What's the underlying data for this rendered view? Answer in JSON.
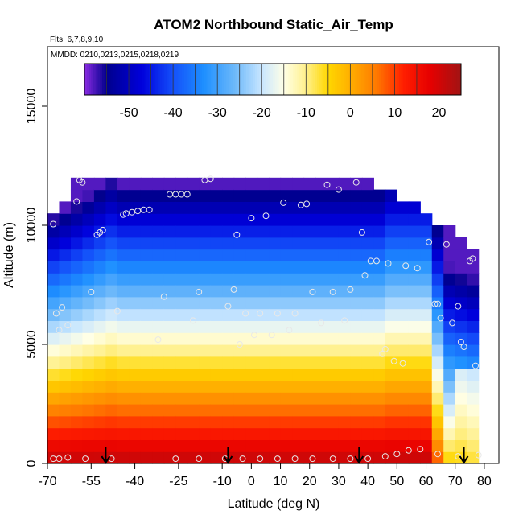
{
  "chart_data": {
    "type": "heatmap",
    "title": "ATOM2 Northbound Static_Air_Temp",
    "flights_note": "Flts: 6,7,8,9,10",
    "dates_note": "MMDD: 0210,0213,0215,0218,0219",
    "xlabel": "Latitude (deg N)",
    "ylabel": "Altitude (m)",
    "xlim": [
      -70,
      85
    ],
    "ylim": [
      0,
      17500
    ],
    "x_ticks": [
      -70,
      -55,
      -40,
      -25,
      -10,
      0,
      10,
      20,
      30,
      40,
      50,
      60,
      70,
      80
    ],
    "x_tick_labels": [
      "-70",
      "-55",
      "-40",
      "-25",
      "-10",
      "0",
      "10",
      "20",
      "30",
      "40",
      "50",
      "60",
      "70",
      "80"
    ],
    "y_ticks": [
      0,
      5000,
      10000,
      15000
    ],
    "y_tick_labels": [
      "0",
      "5000",
      "10000",
      "15000"
    ],
    "colorbar": {
      "min": -60,
      "max": 25,
      "ticks": [
        -50,
        -40,
        -30,
        -20,
        -10,
        0,
        10,
        20
      ],
      "tick_labels": [
        "-50",
        "-40",
        "-30",
        "-20",
        "-10",
        "0",
        "10",
        "20"
      ]
    },
    "grid": {
      "lat_start": -68,
      "lat_step": 4,
      "n_lat": 37,
      "alt_start": 0,
      "alt_step": 500,
      "n_alt": 25,
      "top_alt_by_lat": [
        10500,
        11000,
        12000,
        12000,
        12000,
        12000,
        12000,
        12000,
        12000,
        12000,
        12000,
        12000,
        12000,
        12000,
        12000,
        12000,
        12000,
        12000,
        12000,
        12000,
        12000,
        12000,
        12000,
        12000,
        12000,
        12000,
        12000,
        12000,
        11500,
        11500,
        11000,
        11000,
        10500,
        10000,
        10000,
        9500,
        9000
      ],
      "temperature_model": "estimated surface ~22C at mid-latitudes, ~-5C at 80N, cold upper levels near -55C"
    },
    "sample_points": [
      [
        -68,
        10050
      ],
      [
        -67,
        6300
      ],
      [
        -66,
        5600
      ],
      [
        -65,
        6550
      ],
      [
        -63,
        5800
      ],
      [
        -60,
        11000
      ],
      [
        -59,
        11900
      ],
      [
        -58,
        11800
      ],
      [
        -55,
        7200
      ],
      [
        -53,
        9600
      ],
      [
        -52,
        9700
      ],
      [
        -51,
        9800
      ],
      [
        -46,
        6400
      ],
      [
        -44,
        10450
      ],
      [
        -43,
        10500
      ],
      [
        -41,
        10550
      ],
      [
        -39,
        10600
      ],
      [
        -37,
        10650
      ],
      [
        -35,
        10650
      ],
      [
        -32,
        5200
      ],
      [
        -30,
        7000
      ],
      [
        -28,
        11300
      ],
      [
        -26,
        11300
      ],
      [
        -24,
        11300
      ],
      [
        -22,
        11300
      ],
      [
        -20,
        6000
      ],
      [
        -18,
        7200
      ],
      [
        -16,
        11900
      ],
      [
        -14,
        11950
      ],
      [
        -8,
        6600
      ],
      [
        -6,
        7300
      ],
      [
        -5,
        9600
      ],
      [
        -4,
        5000
      ],
      [
        -2,
        6300
      ],
      [
        0,
        10300
      ],
      [
        1,
        5400
      ],
      [
        3,
        6300
      ],
      [
        5,
        10400
      ],
      [
        7,
        5400
      ],
      [
        9,
        6300
      ],
      [
        11,
        10950
      ],
      [
        13,
        5600
      ],
      [
        15,
        6300
      ],
      [
        17,
        10850
      ],
      [
        19,
        10900
      ],
      [
        21,
        7200
      ],
      [
        24,
        5900
      ],
      [
        26,
        11700
      ],
      [
        28,
        7200
      ],
      [
        30,
        11500
      ],
      [
        32,
        6000
      ],
      [
        34,
        7300
      ],
      [
        36,
        11800
      ],
      [
        38,
        9700
      ],
      [
        39,
        7900
      ],
      [
        41,
        8500
      ],
      [
        43,
        8500
      ],
      [
        45,
        4600
      ],
      [
        46,
        4800
      ],
      [
        47,
        8400
      ],
      [
        49,
        4300
      ],
      [
        52,
        4200
      ],
      [
        53,
        8300
      ],
      [
        57,
        8200
      ],
      [
        61,
        9300
      ],
      [
        63,
        6700
      ],
      [
        64,
        6700
      ],
      [
        65,
        6100
      ],
      [
        67,
        9200
      ],
      [
        69,
        5900
      ],
      [
        71,
        6600
      ],
      [
        72,
        5100
      ],
      [
        73,
        4900
      ],
      [
        75,
        8500
      ],
      [
        76,
        8600
      ],
      [
        77,
        4100
      ],
      [
        -68,
        200
      ],
      [
        -66,
        200
      ],
      [
        -63,
        250
      ],
      [
        -57,
        200
      ],
      [
        -48,
        200
      ],
      [
        -26,
        200
      ],
      [
        -18,
        200
      ],
      [
        -9,
        200
      ],
      [
        -3,
        200
      ],
      [
        3,
        200
      ],
      [
        9,
        200
      ],
      [
        15,
        200
      ],
      [
        21,
        200
      ],
      [
        28,
        200
      ],
      [
        34,
        200
      ],
      [
        40,
        200
      ],
      [
        46,
        300
      ],
      [
        50,
        400
      ],
      [
        54,
        550
      ],
      [
        58,
        600
      ],
      [
        64,
        400
      ],
      [
        71,
        300
      ],
      [
        78,
        350
      ]
    ],
    "arrow_latitudes": [
      -50,
      -8,
      37,
      73
    ],
    "arrow_target_alt": 0
  }
}
